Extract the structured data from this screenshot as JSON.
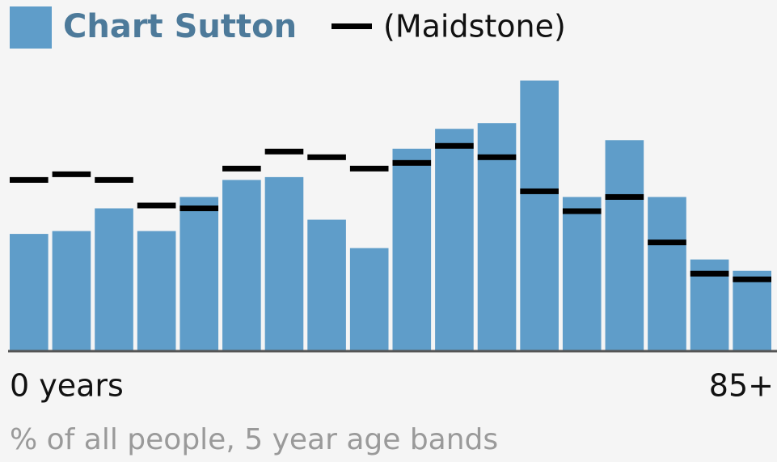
{
  "chart_data": {
    "type": "bar",
    "categories": [
      "0 years",
      null,
      null,
      null,
      null,
      null,
      null,
      null,
      null,
      null,
      null,
      null,
      null,
      null,
      null,
      null,
      null,
      "85+"
    ],
    "series": [
      {
        "name": "Chart Sutton",
        "color": "#5f9dc9",
        "values": [
          4.1,
          4.2,
          5.0,
          4.2,
          5.4,
          6.0,
          6.1,
          4.6,
          3.6,
          7.1,
          7.8,
          8.0,
          9.5,
          5.4,
          7.4,
          5.4,
          3.2,
          2.8
        ]
      },
      {
        "name": "(Maidstone)",
        "color": "#000000",
        "marker": "dash",
        "values": [
          6.0,
          6.2,
          6.0,
          5.1,
          5.0,
          6.4,
          7.0,
          6.8,
          6.4,
          6.6,
          7.2,
          6.8,
          5.6,
          4.9,
          5.4,
          3.8,
          2.7,
          2.5
        ]
      }
    ],
    "xlabel": "% of all people, 5 year age bands",
    "ylim": [
      0,
      10
    ]
  }
}
